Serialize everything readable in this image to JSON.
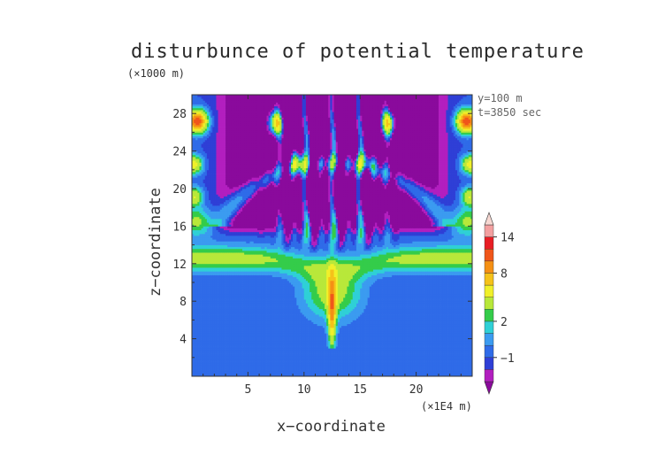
{
  "chart_data": {
    "type": "heatmap",
    "title": "disturbunce of potential temperature",
    "xlabel": "x−coordinate",
    "ylabel": "z−coordinate",
    "x_unit_label": "(×1E4 m)",
    "y_unit_label": "(×1000 m)",
    "annotations": [
      "y=100  m",
      "t=3850 sec"
    ],
    "xlim": [
      0,
      25
    ],
    "ylim": [
      0,
      30
    ],
    "x_ticks": [
      5,
      10,
      15,
      20
    ],
    "y_ticks": [
      4,
      8,
      12,
      16,
      20,
      24,
      28
    ],
    "colorbar": {
      "tick_labels": [
        "−1",
        "2",
        "8",
        "14"
      ],
      "tick_values": [
        -1,
        2,
        8,
        14
      ],
      "levels": [
        -3,
        -2,
        -1,
        0,
        1,
        2,
        3,
        4,
        6,
        8,
        10,
        12,
        14,
        16,
        18
      ],
      "colors": [
        "#8a0a9c",
        "#b21fbf",
        "#2f3fd6",
        "#2f6be8",
        "#3b9bf0",
        "#2fd0d6",
        "#34cc4a",
        "#b8e83a",
        "#f0f02a",
        "#f5c21a",
        "#f59014",
        "#f0561a",
        "#e81e24",
        "#f3a0a0",
        "#f7d8d2"
      ]
    },
    "field_description_values": {
      "background_below_10km": 0,
      "layer_11_to_14km": 6,
      "upper_dome_core": -3,
      "upper_corner_maxima": 14
    }
  }
}
